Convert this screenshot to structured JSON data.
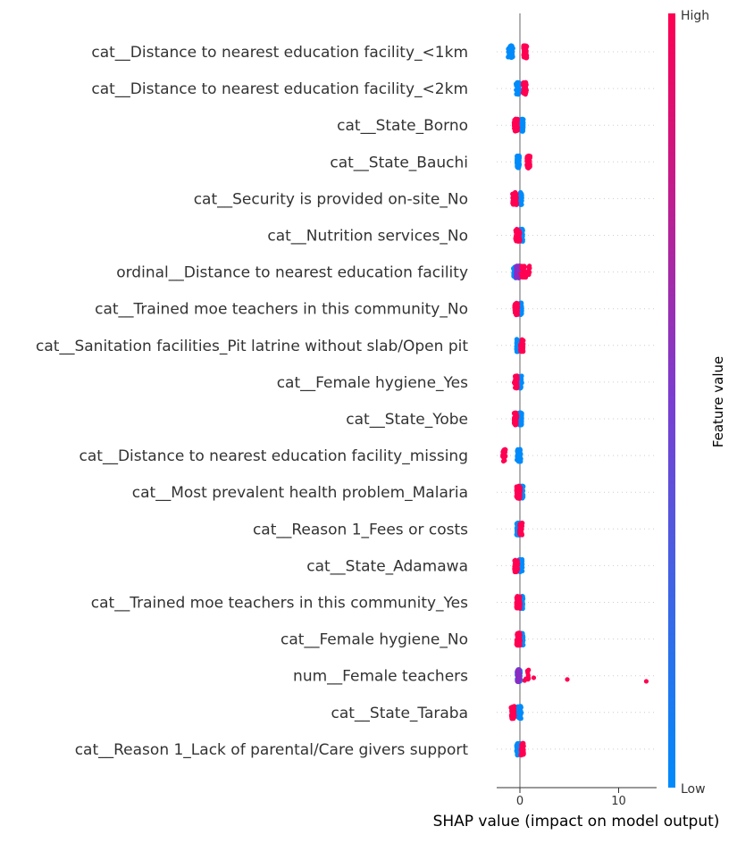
{
  "chart_data": {
    "type": "scatter",
    "xlabel": "SHAP value (impact on model output)",
    "xticks": [
      0,
      10
    ],
    "colorbar": {
      "label": "Feature value",
      "high_label": "High",
      "low_label": "Low",
      "low_color": "#008bfb",
      "high_color": "#ff0052"
    },
    "features": [
      {
        "label": "cat__Distance to nearest education facility_<1km",
        "low": [
          [
            -1.2,
            -0.9,
            40
          ],
          [
            -0.9,
            -0.7,
            30
          ]
        ],
        "high": [
          [
            0.35,
            0.65,
            50
          ],
          [
            0.5,
            0.7,
            20
          ]
        ]
      },
      {
        "label": "cat__Distance to nearest education facility_<2km",
        "low": [
          [
            -0.4,
            -0.05,
            50
          ],
          [
            -0.3,
            -0.1,
            20
          ]
        ],
        "high": [
          [
            0.3,
            0.65,
            45
          ],
          [
            0.4,
            0.7,
            15
          ]
        ]
      },
      {
        "label": "cat__State_Borno",
        "low": [
          [
            0.05,
            0.35,
            55
          ],
          [
            0.1,
            0.3,
            25
          ]
        ],
        "high": [
          [
            -0.6,
            -0.2,
            40
          ],
          [
            -0.5,
            -0.25,
            15
          ]
        ]
      },
      {
        "label": "cat__State_Bauchi",
        "low": [
          [
            -0.3,
            -0.05,
            60
          ],
          [
            -0.25,
            -0.1,
            20
          ]
        ],
        "high": [
          [
            0.7,
            1.05,
            40
          ],
          [
            0.8,
            1.0,
            12
          ]
        ]
      },
      {
        "label": "cat__Security is provided on-site_No",
        "low": [
          [
            -0.1,
            0.2,
            50
          ],
          [
            -0.05,
            0.15,
            20
          ]
        ],
        "high": [
          [
            -0.75,
            -0.3,
            40
          ],
          [
            -0.6,
            -0.35,
            12
          ]
        ]
      },
      {
        "label": "cat__Nutrition services_No",
        "low": [
          [
            0.0,
            0.3,
            45
          ],
          [
            0.05,
            0.25,
            15
          ]
        ],
        "high": [
          [
            -0.45,
            0.0,
            55
          ],
          [
            -0.35,
            -0.05,
            25
          ]
        ]
      },
      {
        "label": "ordinal__Distance to nearest education facility",
        "low": [
          [
            -0.7,
            -0.3,
            25
          ],
          [
            -0.5,
            -0.3,
            10
          ]
        ],
        "high": [
          [
            0.1,
            0.6,
            30
          ],
          [
            0.8,
            1.0,
            6
          ]
        ],
        "mid": [
          [
            -0.4,
            0.0,
            60
          ],
          [
            -0.3,
            -0.05,
            25
          ]
        ]
      },
      {
        "label": "cat__Trained moe teachers in this community_No",
        "low": [
          [
            -0.1,
            0.2,
            55
          ],
          [
            -0.05,
            0.15,
            20
          ]
        ],
        "high": [
          [
            -0.55,
            -0.2,
            40
          ],
          [
            -0.5,
            -0.25,
            12
          ]
        ]
      },
      {
        "label": "cat__Sanitation facilities_Pit latrine without slab/Open pit",
        "low": [
          [
            -0.35,
            0.0,
            55
          ],
          [
            -0.3,
            -0.05,
            20
          ]
        ],
        "high": [
          [
            0.05,
            0.35,
            40
          ],
          [
            0.1,
            0.3,
            15
          ]
        ]
      },
      {
        "label": "cat__Female hygiene_Yes",
        "low": [
          [
            -0.1,
            0.2,
            55
          ],
          [
            -0.05,
            0.15,
            20
          ]
        ],
        "high": [
          [
            -0.6,
            -0.25,
            40
          ],
          [
            -0.5,
            -0.3,
            12
          ]
        ]
      },
      {
        "label": "cat__State_Yobe",
        "low": [
          [
            -0.1,
            0.2,
            55
          ],
          [
            -0.05,
            0.15,
            20
          ]
        ],
        "high": [
          [
            -0.6,
            -0.3,
            35
          ],
          [
            -0.55,
            -0.35,
            12
          ]
        ]
      },
      {
        "label": "cat__Distance to nearest education facility_missing",
        "low": [
          [
            -0.3,
            0.1,
            70
          ],
          [
            -0.2,
            0.05,
            30
          ]
        ],
        "high": [
          [
            -1.75,
            -1.45,
            25
          ]
        ]
      },
      {
        "label": "cat__Most prevalent health problem_Malaria",
        "low": [
          [
            0.0,
            0.35,
            40
          ],
          [
            0.05,
            0.3,
            15
          ]
        ],
        "high": [
          [
            -0.35,
            0.05,
            60
          ],
          [
            -0.25,
            0.0,
            25
          ]
        ]
      },
      {
        "label": "cat__Reason 1_Fees or costs",
        "low": [
          [
            -0.35,
            0.0,
            55
          ],
          [
            -0.3,
            -0.05,
            20
          ]
        ],
        "high": [
          [
            -0.05,
            0.25,
            40
          ],
          [
            0.0,
            0.2,
            15
          ]
        ]
      },
      {
        "label": "cat__State_Adamawa",
        "low": [
          [
            -0.1,
            0.25,
            55
          ],
          [
            -0.05,
            0.2,
            20
          ]
        ],
        "high": [
          [
            -0.55,
            -0.2,
            35
          ],
          [
            -0.5,
            -0.25,
            12
          ]
        ]
      },
      {
        "label": "cat__Trained moe teachers in this community_Yes",
        "low": [
          [
            0.0,
            0.35,
            40
          ],
          [
            0.05,
            0.3,
            15
          ]
        ],
        "high": [
          [
            -0.35,
            0.05,
            60
          ],
          [
            -0.25,
            0.0,
            25
          ]
        ]
      },
      {
        "label": "cat__Female hygiene_No",
        "low": [
          [
            0.0,
            0.35,
            40
          ],
          [
            0.05,
            0.3,
            15
          ]
        ],
        "high": [
          [
            -0.35,
            0.05,
            60
          ],
          [
            -0.25,
            0.0,
            25
          ]
        ]
      },
      {
        "label": "num__Female teachers",
        "low": [
          [
            -0.3,
            0.05,
            50
          ],
          [
            -0.2,
            0.0,
            20
          ]
        ],
        "high": [
          [
            0.2,
            1.4,
            8
          ],
          [
            12.8,
            12.8,
            1
          ],
          [
            4.8,
            4.8,
            1
          ],
          [
            1.4,
            1.4,
            1
          ],
          [
            0.6,
            0.6,
            1
          ]
        ],
        "mid": [
          [
            -0.3,
            0.0,
            30
          ],
          [
            -0.25,
            -0.05,
            10
          ]
        ]
      },
      {
        "label": "cat__State_Taraba",
        "low": [
          [
            -0.2,
            0.15,
            55
          ],
          [
            -0.1,
            0.1,
            20
          ]
        ],
        "high": [
          [
            -0.9,
            -0.55,
            35
          ],
          [
            -0.85,
            -0.6,
            12
          ]
        ]
      },
      {
        "label": "cat__Reason 1_Lack of parental/Care givers support",
        "low": [
          [
            -0.35,
            0.0,
            55
          ],
          [
            -0.3,
            -0.05,
            20
          ]
        ],
        "high": [
          [
            0.1,
            0.4,
            30
          ],
          [
            0.15,
            0.35,
            10
          ]
        ]
      }
    ]
  }
}
